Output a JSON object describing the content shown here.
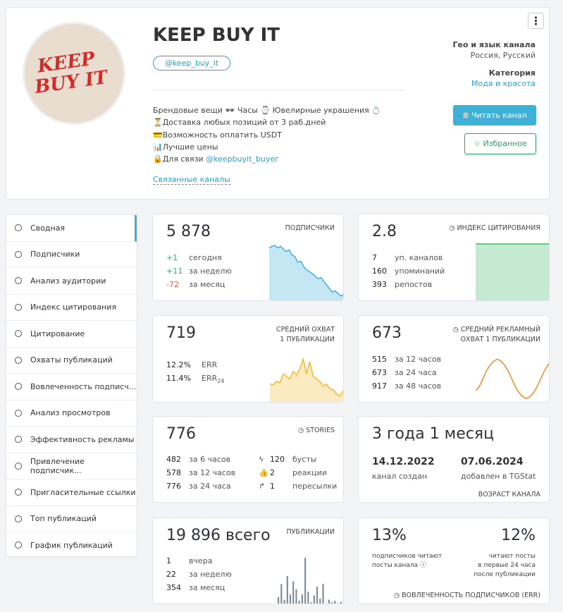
{
  "header": {
    "avatar_text": [
      "KEEP",
      "BUY IT"
    ],
    "title": "KEEP BUY IT",
    "handle": "@keep_buy_it",
    "description": [
      "Брендовые вещи 🕶 Часы ⌚ Ювелирные украшения 💍",
      "⏳Доставка любых позиций от 3 раб.дней",
      "💳Возможность оплатить USDT",
      "📊Лучшие цены",
      "🔒Для связи "
    ],
    "contact_link": "@keepbuyit_buyer",
    "related": "Связанные каналы",
    "geo_label": "Гео и язык канала",
    "geo_value": "Россия, Русский",
    "category_label": "Категория",
    "category_value": "Мода и красота",
    "read_button": "Читать канал",
    "favorite_button": "Избранное"
  },
  "sidebar": [
    "Сводная",
    "Подписчики",
    "Анализ аудитории",
    "Индекс цитирования",
    "Цитирование",
    "Охваты публикаций",
    "Вовлеченность подписч...",
    "Анализ просмотров",
    "Эффективность рекламы",
    "Привлечение подписчик...",
    "Пригласительные ссылки",
    "Топ публикаций",
    "График публикаций"
  ],
  "cards": {
    "subscribers": {
      "value": "5 878",
      "label": "ПОДПИСЧИКИ",
      "rows": [
        [
          "+1",
          "сегодня"
        ],
        [
          "+11",
          "за неделю"
        ],
        [
          "-72",
          "за месяц"
        ]
      ],
      "sparkline": [
        80,
        82,
        83,
        80,
        82,
        78,
        75,
        77,
        70,
        68,
        60,
        62,
        55,
        50,
        48,
        45,
        42,
        38,
        40,
        35,
        30,
        25,
        20,
        22,
        18,
        15,
        17,
        20,
        18,
        16
      ]
    },
    "citation": {
      "value": "2.8",
      "label": "ИНДЕКС ЦИТИРОВАНИЯ",
      "rows": [
        [
          "7",
          "уп. каналов"
        ],
        [
          "160",
          "упоминаний"
        ],
        [
          "393",
          "репостов"
        ]
      ],
      "sparkline": [
        100,
        100,
        100,
        100,
        100,
        100,
        100,
        100,
        100,
        100
      ]
    },
    "reach": {
      "value": "719",
      "label": [
        "СРЕДНИЙ ОХВАТ",
        "1 ПУБЛИКАЦИИ"
      ],
      "rows": [
        [
          "12.2%",
          "ERR"
        ],
        [
          "11.4%",
          "ERR",
          "24"
        ]
      ],
      "sparkline": [
        40,
        38,
        45,
        42,
        60,
        55,
        50,
        65,
        58,
        70,
        90,
        60,
        85,
        55,
        50,
        45,
        35,
        40,
        30,
        28,
        20,
        15,
        25,
        10,
        12,
        20
      ]
    },
    "ad_reach": {
      "value": "673",
      "label": [
        "СРЕДНИЙ РЕКЛАМНЫЙ",
        "ОХВАТ 1 ПУБЛИКАЦИИ"
      ],
      "rows": [
        [
          "515",
          "за 12 часов"
        ],
        [
          "673",
          "за 24 часа"
        ],
        [
          "917",
          "за 48 часов"
        ]
      ],
      "sparkline": [
        20,
        30,
        50,
        70,
        85,
        95,
        100,
        95,
        85,
        70,
        50,
        30,
        15,
        5,
        0,
        5,
        15,
        30,
        50,
        70,
        85,
        95,
        100,
        90
      ]
    },
    "stories": {
      "value": "776",
      "label": "STORIES",
      "rows": [
        [
          "482",
          "за 6 часов"
        ],
        [
          "578",
          "за 12 часов"
        ],
        [
          "776",
          "за 24 часа"
        ]
      ],
      "rows_right": [
        [
          "120",
          "бусты"
        ],
        [
          "2",
          "реакции"
        ],
        [
          "1",
          "пересылки"
        ]
      ]
    },
    "age": {
      "value": "3 года 1 месяц",
      "created": "14.12.2022",
      "created_label": "канал создан",
      "added": "07.06.2024",
      "added_label": "добавлен в TGStat",
      "label": "ВОЗРАСТ КАНАЛА"
    },
    "posts": {
      "value": "19 896",
      "value_suffix": "всего",
      "label": "ПУБЛИКАЦИИ",
      "rows": [
        [
          "1",
          "вчера"
        ],
        [
          "22",
          "за неделю"
        ],
        [
          "354",
          "за месяц"
        ]
      ],
      "bars": [
        2,
        15,
        40,
        10,
        55,
        20,
        45,
        30,
        8,
        20,
        90,
        25,
        5,
        18,
        35,
        12,
        40,
        3,
        10,
        5,
        8,
        3,
        6,
        2,
        4,
        2
      ]
    },
    "engagement": {
      "left": "13%",
      "left_label": [
        "подписчиков читают",
        "посты канала"
      ],
      "right": "12%",
      "right_label": [
        "читают посты",
        "в первые 24 часа",
        "после публикации"
      ],
      "label": "ВОВЛЕЧЕННОСТЬ ПОДПИСЧИКОВ (ERR)"
    }
  }
}
